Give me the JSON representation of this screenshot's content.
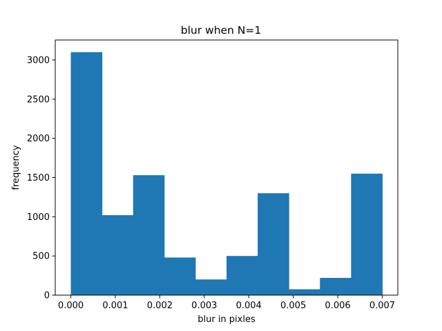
{
  "chart_data": {
    "type": "bar",
    "title": "blur when N=1",
    "xlabel": "blur in pixles",
    "ylabel": "frequency",
    "bin_edges": [
      0.0,
      0.0007,
      0.0014,
      0.0021,
      0.0028,
      0.0035,
      0.0042,
      0.0049,
      0.0056,
      0.0063,
      0.007
    ],
    "values": [
      3100,
      1020,
      1530,
      480,
      200,
      500,
      1300,
      75,
      220,
      1550
    ],
    "xlim": [
      -0.00035,
      0.00735
    ],
    "ylim": [
      0,
      3255
    ],
    "xticks": [
      0.0,
      0.001,
      0.002,
      0.003,
      0.004,
      0.005,
      0.006,
      0.007
    ],
    "xtick_labels": [
      "0.000",
      "0.001",
      "0.002",
      "0.003",
      "0.004",
      "0.005",
      "0.006",
      "0.007"
    ],
    "yticks": [
      0,
      500,
      1000,
      1500,
      2000,
      2500,
      3000
    ],
    "ytick_labels": [
      "0",
      "500",
      "1000",
      "1500",
      "2000",
      "2500",
      "3000"
    ],
    "grid": false,
    "bar_color": "#1f77b4"
  }
}
